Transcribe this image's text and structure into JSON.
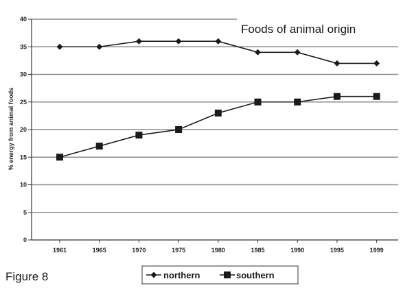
{
  "figure_label": "Figure 8",
  "chart_data": {
    "type": "line",
    "title": "Foods of animal origin",
    "xlabel": "",
    "ylabel": "% energy from animal foods",
    "categories": [
      "1961",
      "1965",
      "1970",
      "1975",
      "1980",
      "1985",
      "1990",
      "1995",
      "1999"
    ],
    "ylim": [
      0,
      40
    ],
    "yticks": [
      "0",
      "5",
      "10",
      "15",
      "20",
      "25",
      "30",
      "35",
      "40"
    ],
    "grid": true,
    "legend_position": "bottom",
    "series": [
      {
        "name": "northern",
        "marker": "diamond",
        "color": "#1a1a1a",
        "values": [
          35,
          35,
          36,
          36,
          36,
          34,
          34,
          32,
          32
        ]
      },
      {
        "name": "southern",
        "marker": "square",
        "color": "#1a1a1a",
        "values": [
          15,
          17,
          19,
          20,
          23,
          25,
          25,
          26,
          26
        ]
      }
    ]
  }
}
